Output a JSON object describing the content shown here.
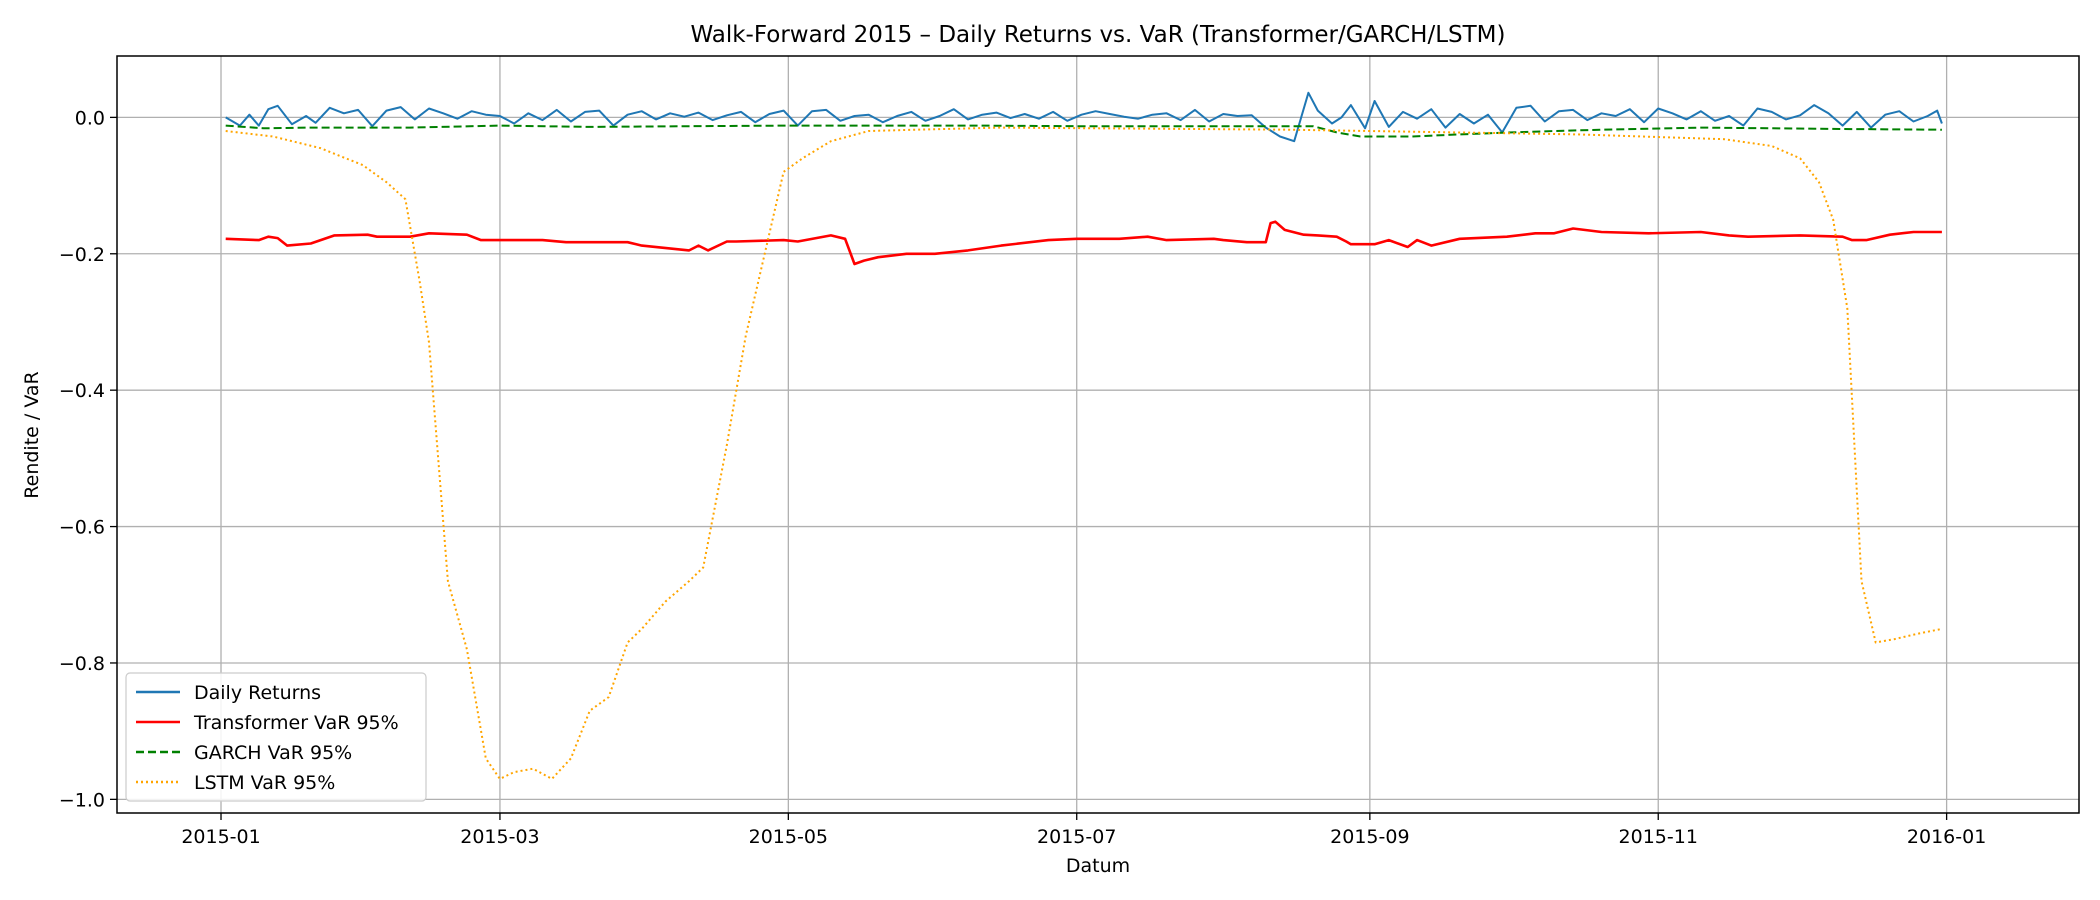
{
  "chart_data": {
    "type": "line",
    "title": "Walk-Forward 2015 – Daily Returns vs. VaR (Transformer/GARCH/LSTM)",
    "xlabel": "Datum",
    "ylabel": "Rendite / VaR",
    "x_range": [
      "2014-12-10",
      "2016-01-29"
    ],
    "x_ticks": [
      "2015-01",
      "2015-03",
      "2015-05",
      "2015-07",
      "2015-09",
      "2015-11",
      "2016-01"
    ],
    "ylim": [
      -1.02,
      0.09
    ],
    "y_ticks": [
      0.0,
      -0.2,
      -0.4,
      -0.6,
      -0.8,
      -1.0
    ],
    "y_tick_labels": [
      "0.0",
      "−0.2",
      "−0.4",
      "−0.6",
      "−0.8",
      "−1.0"
    ],
    "grid": true,
    "legend_position": "lower-left",
    "series": [
      {
        "name": "Daily Returns",
        "color": "#1f77b4",
        "style": "solid",
        "x": [
          "2015-01-02",
          "2015-01-05",
          "2015-01-07",
          "2015-01-09",
          "2015-01-11",
          "2015-01-13",
          "2015-01-16",
          "2015-01-19",
          "2015-01-21",
          "2015-01-24",
          "2015-01-27",
          "2015-01-30",
          "2015-02-02",
          "2015-02-05",
          "2015-02-08",
          "2015-02-11",
          "2015-02-14",
          "2015-02-17",
          "2015-02-20",
          "2015-02-23",
          "2015-02-26",
          "2015-03-01",
          "2015-03-04",
          "2015-03-07",
          "2015-03-10",
          "2015-03-13",
          "2015-03-16",
          "2015-03-19",
          "2015-03-22",
          "2015-03-25",
          "2015-03-28",
          "2015-03-31",
          "2015-04-03",
          "2015-04-06",
          "2015-04-09",
          "2015-04-12",
          "2015-04-15",
          "2015-04-18",
          "2015-04-21",
          "2015-04-24",
          "2015-04-27",
          "2015-04-30",
          "2015-05-03",
          "2015-05-06",
          "2015-05-09",
          "2015-05-12",
          "2015-05-15",
          "2015-05-18",
          "2015-05-21",
          "2015-05-24",
          "2015-05-27",
          "2015-05-30",
          "2015-06-02",
          "2015-06-05",
          "2015-06-08",
          "2015-06-11",
          "2015-06-14",
          "2015-06-17",
          "2015-06-20",
          "2015-06-23",
          "2015-06-26",
          "2015-06-29",
          "2015-07-02",
          "2015-07-05",
          "2015-07-08",
          "2015-07-11",
          "2015-07-14",
          "2015-07-17",
          "2015-07-20",
          "2015-07-23",
          "2015-07-26",
          "2015-07-29",
          "2015-08-01",
          "2015-08-04",
          "2015-08-07",
          "2015-08-10",
          "2015-08-13",
          "2015-08-16",
          "2015-08-19",
          "2015-08-21",
          "2015-08-24",
          "2015-08-26",
          "2015-08-28",
          "2015-08-31",
          "2015-09-02",
          "2015-09-05",
          "2015-09-08",
          "2015-09-11",
          "2015-09-14",
          "2015-09-17",
          "2015-09-20",
          "2015-09-23",
          "2015-09-26",
          "2015-09-29",
          "2015-10-02",
          "2015-10-05",
          "2015-10-08",
          "2015-10-11",
          "2015-10-14",
          "2015-10-17",
          "2015-10-20",
          "2015-10-23",
          "2015-10-26",
          "2015-10-29",
          "2015-11-01",
          "2015-11-04",
          "2015-11-07",
          "2015-11-10",
          "2015-11-13",
          "2015-11-16",
          "2015-11-19",
          "2015-11-22",
          "2015-11-25",
          "2015-11-28",
          "2015-12-01",
          "2015-12-04",
          "2015-12-07",
          "2015-12-10",
          "2015-12-13",
          "2015-12-16",
          "2015-12-19",
          "2015-12-22",
          "2015-12-25",
          "2015-12-28",
          "2015-12-30",
          "2015-12-31"
        ],
        "values": [
          0.0,
          -0.012,
          0.004,
          -0.012,
          0.012,
          0.017,
          -0.01,
          0.002,
          -0.008,
          0.014,
          0.006,
          0.011,
          -0.013,
          0.01,
          0.015,
          -0.003,
          0.013,
          0.006,
          -0.002,
          0.009,
          0.004,
          0.002,
          -0.009,
          0.006,
          -0.004,
          0.011,
          -0.006,
          0.008,
          0.01,
          -0.012,
          0.004,
          0.009,
          -0.003,
          0.006,
          0.001,
          0.007,
          -0.004,
          0.003,
          0.008,
          -0.007,
          0.005,
          0.01,
          -0.012,
          0.009,
          0.011,
          -0.005,
          0.002,
          0.004,
          -0.007,
          0.002,
          0.008,
          -0.005,
          0.002,
          0.012,
          -0.003,
          0.004,
          0.007,
          -0.001,
          0.005,
          -0.002,
          0.008,
          -0.005,
          0.004,
          0.009,
          0.005,
          0.001,
          -0.002,
          0.004,
          0.006,
          -0.004,
          0.011,
          -0.006,
          0.005,
          0.002,
          0.003,
          -0.015,
          -0.028,
          -0.035,
          0.036,
          0.01,
          -0.009,
          0.0,
          0.018,
          -0.016,
          0.024,
          -0.014,
          0.008,
          -0.002,
          0.012,
          -0.015,
          0.005,
          -0.009,
          0.004,
          -0.022,
          0.014,
          0.017,
          -0.006,
          0.009,
          0.011,
          -0.004,
          0.006,
          0.002,
          0.012,
          -0.007,
          0.013,
          0.006,
          -0.003,
          0.009,
          -0.005,
          0.002,
          -0.012,
          0.013,
          0.008,
          -0.003,
          0.003,
          0.018,
          0.006,
          -0.012,
          0.008,
          -0.015,
          0.004,
          0.009,
          -0.006,
          0.002,
          0.01,
          -0.009
        ]
      },
      {
        "name": "Transformer VaR 95%",
        "color": "#ff0000",
        "style": "solid",
        "x": [
          "2015-01-02",
          "2015-01-09",
          "2015-01-11",
          "2015-01-13",
          "2015-01-15",
          "2015-01-20",
          "2015-01-25",
          "2015-02-01",
          "2015-02-03",
          "2015-02-10",
          "2015-02-14",
          "2015-02-22",
          "2015-02-25",
          "2015-03-01",
          "2015-03-10",
          "2015-03-15",
          "2015-03-20",
          "2015-03-28",
          "2015-03-31",
          "2015-04-10",
          "2015-04-12",
          "2015-04-14",
          "2015-04-18",
          "2015-04-20",
          "2015-04-30",
          "2015-05-03",
          "2015-05-10",
          "2015-05-13",
          "2015-05-15",
          "2015-05-17",
          "2015-05-20",
          "2015-05-26",
          "2015-06-01",
          "2015-06-08",
          "2015-06-15",
          "2015-06-25",
          "2015-07-01",
          "2015-07-10",
          "2015-07-16",
          "2015-07-20",
          "2015-07-30",
          "2015-08-01",
          "2015-08-06",
          "2015-08-10",
          "2015-08-11",
          "2015-08-12",
          "2015-08-14",
          "2015-08-18",
          "2015-08-21",
          "2015-08-25",
          "2015-08-27",
          "2015-08-28",
          "2015-09-02",
          "2015-09-05",
          "2015-09-09",
          "2015-09-11",
          "2015-09-14",
          "2015-09-20",
          "2015-09-30",
          "2015-10-06",
          "2015-10-10",
          "2015-10-14",
          "2015-10-20",
          "2015-10-30",
          "2015-11-10",
          "2015-11-16",
          "2015-11-20",
          "2015-12-01",
          "2015-12-10",
          "2015-12-12",
          "2015-12-15",
          "2015-12-20",
          "2015-12-25",
          "2015-12-31"
        ],
        "values": [
          -0.178,
          -0.18,
          -0.175,
          -0.177,
          -0.188,
          -0.185,
          -0.173,
          -0.172,
          -0.175,
          -0.175,
          -0.17,
          -0.172,
          -0.18,
          -0.18,
          -0.18,
          -0.183,
          -0.183,
          -0.183,
          -0.188,
          -0.195,
          -0.188,
          -0.195,
          -0.182,
          -0.182,
          -0.18,
          -0.182,
          -0.173,
          -0.178,
          -0.215,
          -0.21,
          -0.205,
          -0.2,
          -0.2,
          -0.195,
          -0.188,
          -0.18,
          -0.178,
          -0.178,
          -0.175,
          -0.18,
          -0.178,
          -0.18,
          -0.183,
          -0.183,
          -0.155,
          -0.153,
          -0.165,
          -0.172,
          -0.173,
          -0.175,
          -0.182,
          -0.186,
          -0.186,
          -0.18,
          -0.19,
          -0.18,
          -0.188,
          -0.178,
          -0.175,
          -0.17,
          -0.17,
          -0.163,
          -0.168,
          -0.17,
          -0.168,
          -0.173,
          -0.175,
          -0.173,
          -0.175,
          -0.18,
          -0.18,
          -0.172,
          -0.168,
          -0.168
        ]
      },
      {
        "name": "GARCH VaR 95%",
        "color": "#008000",
        "style": "dashed",
        "x": [
          "2015-01-02",
          "2015-01-10",
          "2015-01-20",
          "2015-02-10",
          "2015-03-01",
          "2015-03-20",
          "2015-04-10",
          "2015-05-01",
          "2015-05-20",
          "2015-06-10",
          "2015-07-01",
          "2015-07-20",
          "2015-08-10",
          "2015-08-20",
          "2015-08-25",
          "2015-08-30",
          "2015-09-10",
          "2015-09-20",
          "2015-10-01",
          "2015-10-10",
          "2015-10-20",
          "2015-11-10",
          "2015-12-10",
          "2015-12-31"
        ],
        "values": [
          -0.012,
          -0.016,
          -0.015,
          -0.015,
          -0.012,
          -0.014,
          -0.013,
          -0.012,
          -0.012,
          -0.012,
          -0.013,
          -0.013,
          -0.013,
          -0.013,
          -0.022,
          -0.028,
          -0.028,
          -0.025,
          -0.022,
          -0.02,
          -0.018,
          -0.015,
          -0.017,
          -0.018
        ]
      },
      {
        "name": "LSTM VaR 95%",
        "color": "#ffa500",
        "style": "dotted",
        "x": [
          "2015-01-02",
          "2015-01-12",
          "2015-01-22",
          "2015-01-31",
          "2015-02-05",
          "2015-02-09",
          "2015-02-12",
          "2015-02-14",
          "2015-02-18",
          "2015-02-22",
          "2015-02-26",
          "2015-03-01",
          "2015-03-04",
          "2015-03-08",
          "2015-03-12",
          "2015-03-16",
          "2015-03-20",
          "2015-03-24",
          "2015-03-28",
          "2015-03-31",
          "2015-04-05",
          "2015-04-10",
          "2015-04-13",
          "2015-04-18",
          "2015-04-22",
          "2015-04-26",
          "2015-04-30",
          "2015-05-04",
          "2015-05-10",
          "2015-05-18",
          "2015-05-28",
          "2015-06-15",
          "2015-08-15",
          "2015-10-15",
          "2015-11-15",
          "2015-11-25",
          "2015-12-01",
          "2015-12-05",
          "2015-12-08",
          "2015-12-11",
          "2015-12-14",
          "2015-12-17",
          "2015-12-21",
          "2015-12-26",
          "2015-12-31"
        ],
        "values": [
          -0.02,
          -0.028,
          -0.045,
          -0.07,
          -0.095,
          -0.12,
          -0.24,
          -0.33,
          -0.68,
          -0.78,
          -0.94,
          -0.97,
          -0.96,
          -0.955,
          -0.97,
          -0.94,
          -0.87,
          -0.85,
          -0.77,
          -0.75,
          -0.71,
          -0.68,
          -0.66,
          -0.48,
          -0.32,
          -0.2,
          -0.08,
          -0.06,
          -0.035,
          -0.02,
          -0.018,
          -0.015,
          -0.018,
          -0.025,
          -0.032,
          -0.042,
          -0.06,
          -0.095,
          -0.15,
          -0.28,
          -0.68,
          -0.77,
          -0.765,
          -0.757,
          -0.75
        ]
      }
    ]
  }
}
